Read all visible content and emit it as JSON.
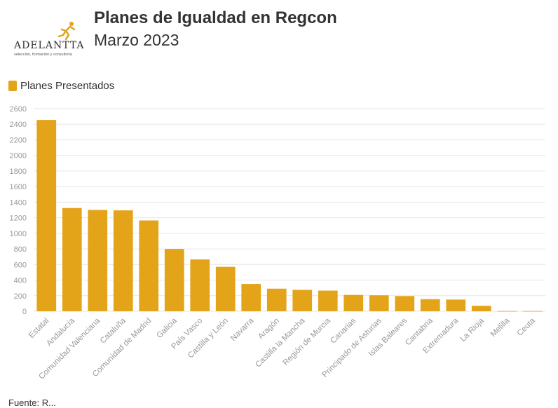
{
  "header": {
    "title": "Planes de Igualdad en Regcon",
    "subtitle": "Marzo 2023"
  },
  "logo": {
    "name": "ADELANTTA",
    "tagline": "selección, formación y consultoría"
  },
  "legend": {
    "label": "Planes Presentados",
    "color": "#e3a41a"
  },
  "footer": {
    "source": "Fuente: R..."
  },
  "chart_data": {
    "type": "bar",
    "categories": [
      "Estatal",
      "Andalucía",
      "Comunidad Valenciana",
      "Cataluña",
      "Comunidad de Madrid",
      "Galicia",
      "País Vasco",
      "Castilla y León",
      "Navarra",
      "Aragón",
      "Castilla la Mancha",
      "Región de Murcia",
      "Canarias",
      "Principado de Asturias",
      "Islas Baleares",
      "Cantabria",
      "Extremadura",
      "La Rioja",
      "Melilla",
      "Ceuta"
    ],
    "series": [
      {
        "name": "Planes Presentados",
        "values": [
          2455,
          1325,
          1300,
          1295,
          1165,
          800,
          665,
          570,
          350,
          290,
          275,
          265,
          210,
          205,
          195,
          155,
          150,
          70,
          3,
          3
        ]
      }
    ],
    "title": "Planes de Igualdad en Regcon",
    "xlabel": "",
    "ylabel": "",
    "ylim": [
      0,
      2600
    ],
    "yticks": [
      0,
      200,
      400,
      600,
      800,
      1000,
      1200,
      1400,
      1600,
      1800,
      2000,
      2200,
      2400,
      2600
    ],
    "grid": true,
    "legend_position": "top-left"
  }
}
